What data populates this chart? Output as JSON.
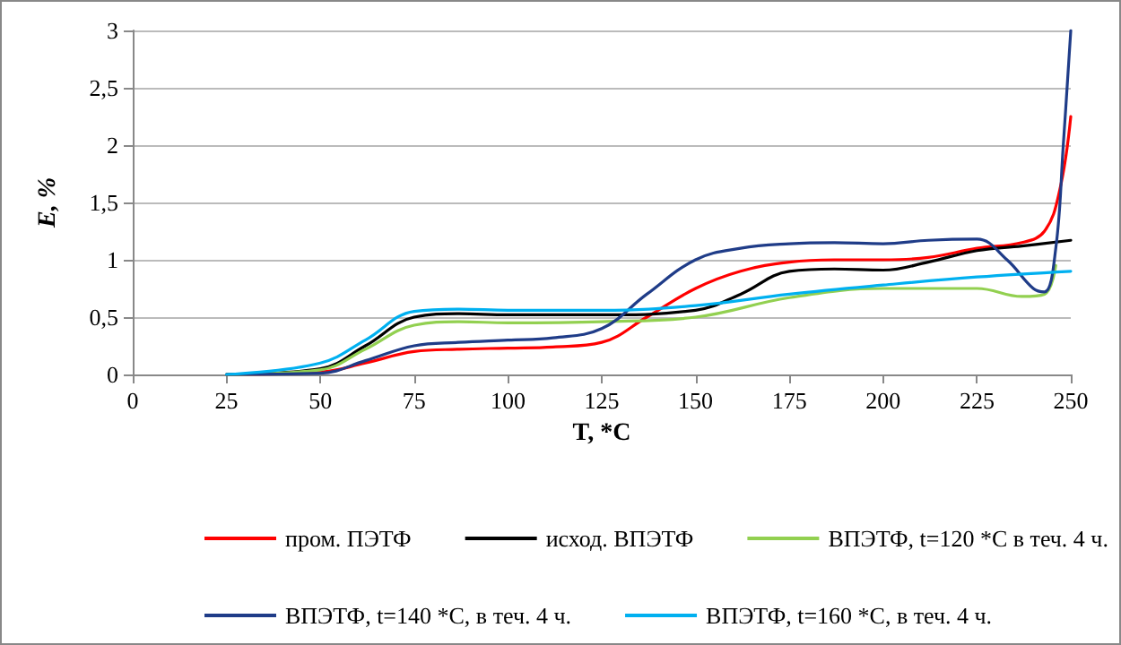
{
  "chart_data": {
    "type": "line",
    "xlabel": "T, *C",
    "ylabel": "E, %",
    "xlim": [
      0,
      250
    ],
    "xticks": [
      0,
      25,
      50,
      75,
      100,
      125,
      150,
      175,
      200,
      225,
      250
    ],
    "ylim": [
      0,
      3
    ],
    "yticks": [
      0,
      {
        "value": 0.5,
        "label": "0,5"
      },
      1,
      {
        "value": 1.5,
        "label": "1,5"
      },
      2,
      {
        "value": 2.5,
        "label": "2,5"
      },
      3
    ],
    "grid": "y",
    "legend": "bottom",
    "marker": "none",
    "line_style": "solid",
    "series": [
      {
        "name": "пром. ПЭТФ",
        "color": "#ff0000",
        "x": [
          25,
          50,
          62,
          75,
          87,
          100,
          112,
          125,
          137,
          150,
          162,
          175,
          187,
          200,
          212,
          225,
          237,
          243,
          247,
          250
        ],
        "values": [
          0,
          0.02,
          0.1,
          0.2,
          0.22,
          0.23,
          0.24,
          0.28,
          0.5,
          0.75,
          0.9,
          0.98,
          1.0,
          1.0,
          1.02,
          1.1,
          1.15,
          1.25,
          1.6,
          2.25
        ]
      },
      {
        "name": "исход. ВПЭТФ",
        "color": "#000000",
        "x": [
          25,
          50,
          62,
          75,
          87,
          100,
          125,
          150,
          162,
          175,
          187,
          200,
          212,
          225,
          237,
          250
        ],
        "values": [
          0,
          0.05,
          0.25,
          0.5,
          0.53,
          0.52,
          0.52,
          0.56,
          0.7,
          0.9,
          0.92,
          0.91,
          0.98,
          1.08,
          1.12,
          1.17
        ]
      },
      {
        "name": "ВПЭТФ, t=120 *С в теч. 4 ч.",
        "color": "#92d050",
        "x": [
          25,
          50,
          62,
          75,
          87,
          100,
          125,
          150,
          175,
          200,
          225,
          237,
          243,
          246
        ],
        "values": [
          0,
          0.04,
          0.22,
          0.43,
          0.46,
          0.45,
          0.46,
          0.5,
          0.67,
          0.75,
          0.75,
          0.68,
          0.7,
          0.95
        ]
      },
      {
        "name": "ВПЭТФ, t=140 *С, в теч. 4 ч.",
        "color": "#1f3c88",
        "x": [
          25,
          50,
          62,
          75,
          87,
          100,
          112,
          125,
          137,
          150,
          162,
          175,
          187,
          200,
          212,
          225,
          233,
          240,
          243,
          246,
          248,
          250
        ],
        "values": [
          0,
          0.01,
          0.12,
          0.25,
          0.28,
          0.3,
          0.32,
          0.4,
          0.7,
          1.0,
          1.1,
          1.14,
          1.15,
          1.14,
          1.17,
          1.18,
          1.0,
          0.75,
          0.72,
          1.1,
          2.0,
          3.0
        ]
      },
      {
        "name": "ВПЭТФ, t=160 *С, в теч. 4 ч.",
        "color": "#00b0f0",
        "x": [
          25,
          50,
          62,
          75,
          87,
          100,
          125,
          150,
          175,
          200,
          225,
          250
        ],
        "values": [
          0,
          0.1,
          0.3,
          0.55,
          0.57,
          0.56,
          0.56,
          0.6,
          0.7,
          0.78,
          0.85,
          0.9
        ]
      }
    ]
  }
}
